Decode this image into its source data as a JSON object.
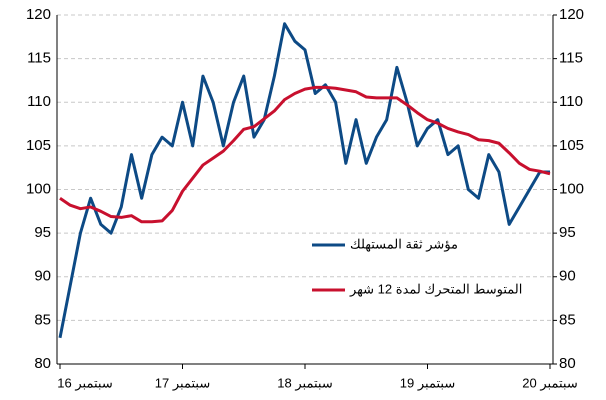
{
  "chart_data": {
    "type": "line",
    "categories": [
      "سبتمبر 16",
      null,
      null,
      null,
      null,
      null,
      null,
      null,
      null,
      null,
      null,
      null,
      "سبتمبر 17",
      null,
      null,
      null,
      null,
      null,
      null,
      null,
      null,
      null,
      null,
      null,
      "سبتمبر 18",
      null,
      null,
      null,
      null,
      null,
      null,
      null,
      null,
      null,
      null,
      null,
      "سبتمبر 19",
      null,
      null,
      null,
      null,
      null,
      null,
      null,
      null,
      null,
      null,
      null,
      "سبتمبر 20"
    ],
    "series": [
      {
        "name": "مؤشر ثقة المستهلك",
        "color": "#0d4a85",
        "values": [
          83,
          89,
          95,
          99,
          96,
          95,
          98,
          104,
          99,
          104,
          106,
          105,
          110,
          105,
          113,
          110,
          105,
          110,
          113,
          106,
          108,
          113,
          119,
          117,
          116,
          111,
          112,
          110,
          103,
          108,
          103,
          106,
          108,
          114,
          110,
          105,
          107,
          108,
          104,
          105,
          100,
          99,
          104,
          102,
          96,
          98,
          100,
          102,
          102
        ]
      },
      {
        "name": "المتوسط المتحرك لمدة 12 شهر",
        "color": "#c8102e",
        "values": [
          99,
          98.2,
          97.8,
          98,
          97.5,
          96.9,
          96.8,
          97,
          96.3,
          96.3,
          96.4,
          97.6,
          99.8,
          101.3,
          102.8,
          103.6,
          104.4,
          105.6,
          106.9,
          107.2,
          108.1,
          109,
          110.3,
          111,
          111.5,
          111.7,
          111.7,
          111.6,
          111.4,
          111.2,
          110.6,
          110.5,
          110.5,
          110.5,
          109.7,
          108.8,
          108,
          107.6,
          107,
          106.6,
          106.3,
          105.7,
          105.6,
          105.3,
          104.2,
          103,
          102.3,
          102.1,
          101.8
        ]
      }
    ],
    "ylim": [
      80,
      120
    ],
    "yticks": [
      80,
      85,
      90,
      95,
      100,
      105,
      110,
      115,
      120
    ],
    "y2lim": [
      80,
      120
    ],
    "y2ticks": [
      80,
      85,
      90,
      95,
      100,
      105,
      110,
      115,
      120
    ],
    "grid": true
  }
}
